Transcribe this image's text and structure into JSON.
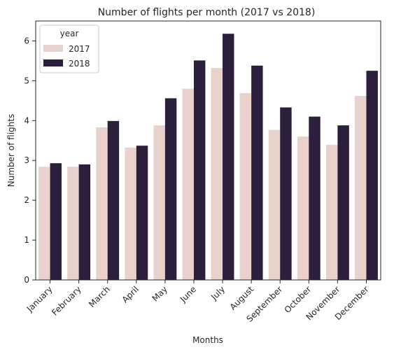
{
  "chart_data": {
    "type": "bar",
    "title": "Number of flights per month (2017 vs 2018)",
    "xlabel": "Months",
    "ylabel": "Number of flights",
    "ylim": [
      0,
      6.5
    ],
    "yticks": [
      0,
      1,
      2,
      3,
      4,
      5,
      6
    ],
    "categories": [
      "January",
      "February",
      "March",
      "April",
      "May",
      "June",
      "July",
      "August",
      "September",
      "October",
      "November",
      "December"
    ],
    "series": [
      {
        "name": "2017",
        "color": "#e9d2cc",
        "values": [
          2.84,
          2.84,
          3.83,
          3.32,
          3.88,
          4.8,
          5.32,
          4.69,
          3.77,
          3.6,
          3.39,
          4.62
        ]
      },
      {
        "name": "2018",
        "color": "#2c1e3d",
        "values": [
          2.93,
          2.9,
          3.99,
          3.37,
          4.56,
          5.51,
          6.18,
          5.38,
          4.33,
          4.1,
          3.88,
          5.25
        ]
      }
    ],
    "legend": {
      "title": "year",
      "placement": "top-left"
    },
    "grid": false,
    "x_tick_rotation": 45
  }
}
